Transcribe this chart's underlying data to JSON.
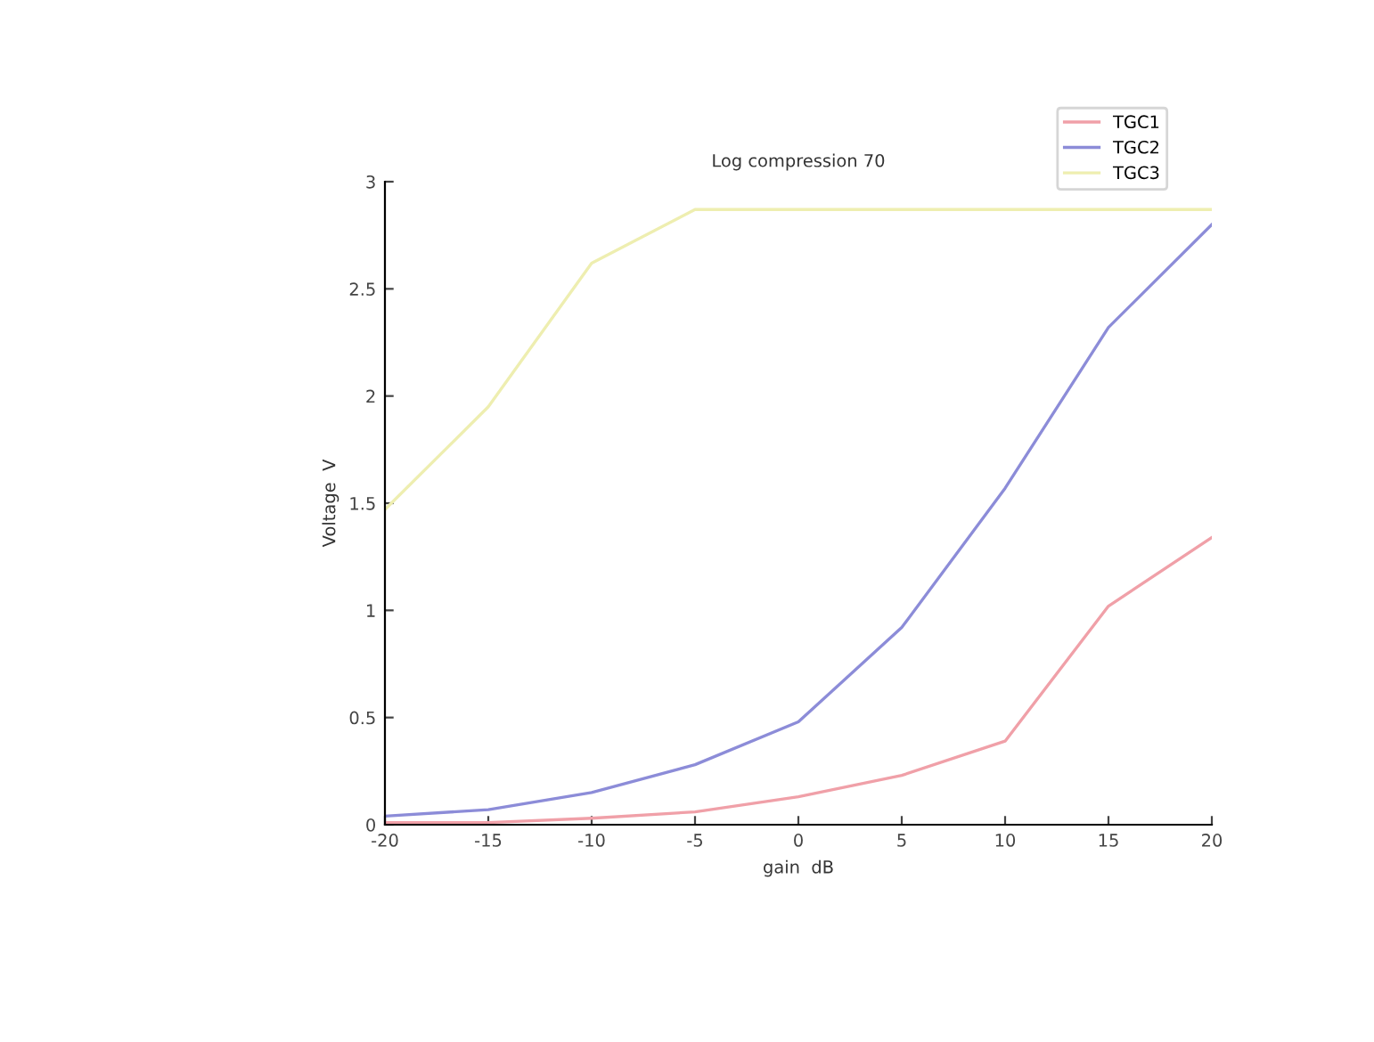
{
  "chart_data": {
    "type": "line",
    "title": "Log compression 70",
    "xlabel": "gain  dB",
    "ylabel": "Voltage  V",
    "x": [
      -20,
      -15,
      -10,
      -5,
      0,
      5,
      10,
      15,
      20
    ],
    "series": [
      {
        "name": "TGC1",
        "color": "#f0a0a8",
        "values": [
          0.01,
          0.01,
          0.03,
          0.06,
          0.13,
          0.23,
          0.39,
          1.02,
          1.34
        ]
      },
      {
        "name": "TGC2",
        "color": "#8c8cd8",
        "values": [
          0.04,
          0.07,
          0.15,
          0.28,
          0.48,
          0.92,
          1.57,
          2.32,
          2.8
        ]
      },
      {
        "name": "TGC3",
        "color": "#eeeeb0",
        "values": [
          1.47,
          1.95,
          2.62,
          2.87,
          2.87,
          2.87,
          2.87,
          2.87,
          2.87
        ]
      }
    ],
    "xlim": [
      -20,
      20
    ],
    "ylim": [
      0,
      3
    ],
    "xticks": [
      -20,
      -15,
      -10,
      -5,
      0,
      5,
      10,
      15,
      20
    ],
    "yticks": [
      0,
      0.5,
      1,
      1.5,
      2,
      2.5,
      3
    ],
    "grid": false,
    "legend": "top right",
    "marker": "none",
    "line_style": "solid"
  }
}
